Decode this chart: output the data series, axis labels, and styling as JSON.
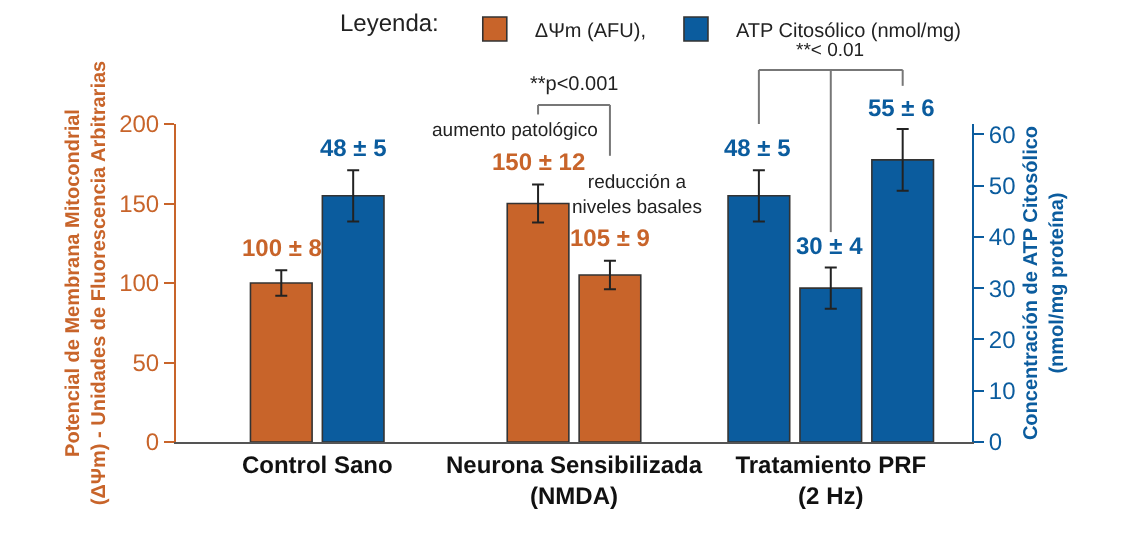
{
  "chart_data": {
    "type": "bar",
    "categories": [
      "Control Sano",
      "Neurona Sensibilizada\n(NMDA)",
      "Tratamiento PRF\n(2 Hz)"
    ],
    "ylabel": "Potencial de Membrana Mitocondrial\n(ΔΨm) - Unidades de Fluorescencia Arbitrarias",
    "y2label": "Concentración de ATP Citosólico\n(nmol/mg proteína)",
    "legend_title": "Leyenda:",
    "series": [
      {
        "name": "ΔΨm (AFU),",
        "color": "#c8642a",
        "axis": "y",
        "values": [
          100,
          150,
          null
        ],
        "errors": [
          8,
          12,
          null
        ],
        "value_labels": [
          "100 ± 8",
          "150 ± 12",
          null
        ]
      },
      {
        "color": "#c8642a",
        "axis": "y",
        "values": [
          null,
          105,
          null
        ],
        "errors": [
          null,
          9,
          null
        ],
        "value_labels": [
          null,
          "105 ± 9",
          null
        ]
      },
      {
        "name": "ATP Citosólico (nmol/mg)",
        "color": "#0b5c9e",
        "axis": "y2",
        "values": [
          48,
          null,
          48
        ],
        "errors": [
          5,
          null,
          5
        ],
        "value_labels": [
          "48 ± 5",
          null,
          "48 ± 5"
        ]
      },
      {
        "color": "#0b5c9e",
        "axis": "y2",
        "values": [
          null,
          null,
          30
        ],
        "errors": [
          null,
          null,
          4
        ],
        "value_labels": [
          null,
          null,
          "30 ± 4"
        ]
      },
      {
        "color": "#0b5c9e",
        "axis": "y2",
        "values": [
          null,
          null,
          55
        ],
        "errors": [
          null,
          null,
          6
        ],
        "value_labels": [
          null,
          null,
          "55 ± 6"
        ]
      }
    ],
    "ylim": [
      0,
      200
    ],
    "yticks": [
      0,
      50,
      100,
      150,
      200
    ],
    "y2lim": [
      0,
      62
    ],
    "y2ticks": [
      0,
      10,
      20,
      30,
      40,
      50,
      60
    ],
    "annotations": [
      "**p<0.001",
      "aumento patológico",
      "reducción a\nniveles basales",
      "**< 0.01"
    ],
    "legend": "top right"
  }
}
